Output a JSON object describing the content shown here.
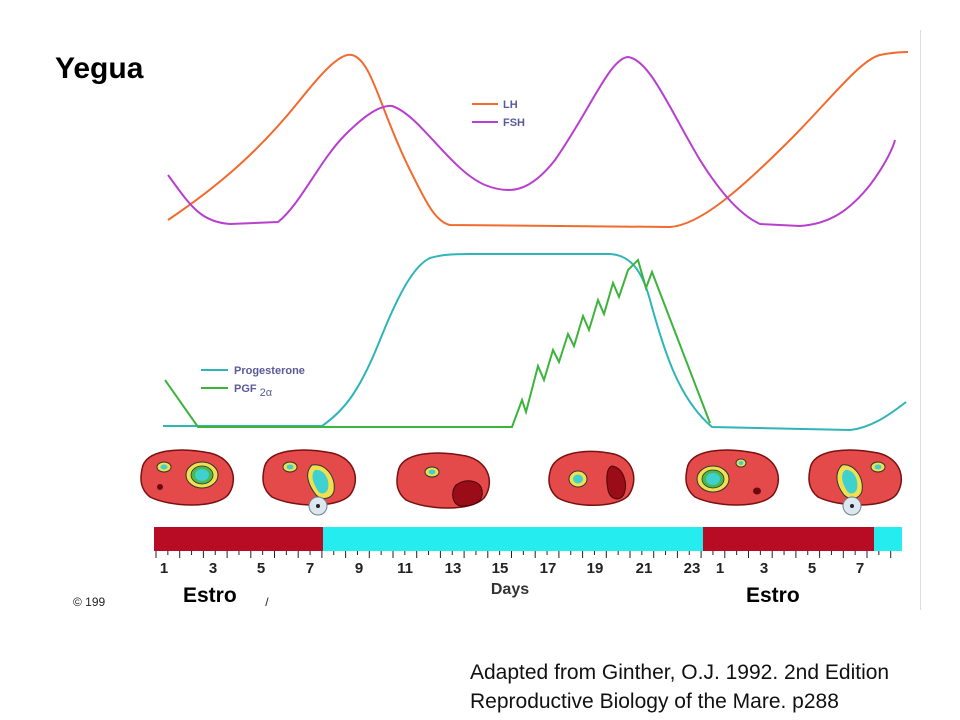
{
  "title": "Yegua",
  "legend_top": [
    {
      "label": "LH",
      "color": "#f26a2e"
    },
    {
      "label": "FSH",
      "color": "#b83fd0"
    }
  ],
  "legend_bottom": [
    {
      "label": "Progesterone",
      "color": "#2fb5b7"
    },
    {
      "label": "PGF",
      "sub": "2α",
      "color": "#3cb43c"
    }
  ],
  "colors": {
    "phase_estrus": "#b80c24",
    "phase_diestrus": "#25ecef"
  },
  "day_ticks": [
    "1",
    "3",
    "5",
    "7",
    "9",
    "11",
    "13",
    "15",
    "17",
    "19",
    "21",
    "23",
    "1",
    "3",
    "5",
    "7"
  ],
  "xlabel": "Days",
  "estro_left": "Estro",
  "estro_right": "Estro",
  "copyright": "© 199",
  "copyright_tail": "/",
  "credit": {
    "line1": "Adapted from Ginther, O.J. 1992. 2nd Edition",
    "line2": "Reproductive Biology of the Mare. p288"
  },
  "ovaries": [
    {
      "id": "ovary-1",
      "structure": "follicle"
    },
    {
      "id": "ovary-2",
      "structure": "ovulation"
    },
    {
      "id": "ovary-3",
      "structure": "corpus-luteum"
    },
    {
      "id": "ovary-4",
      "structure": "regressing-corpus-luteum"
    },
    {
      "id": "ovary-5",
      "structure": "follicle"
    },
    {
      "id": "ovary-6",
      "structure": "ovulation"
    }
  ]
}
